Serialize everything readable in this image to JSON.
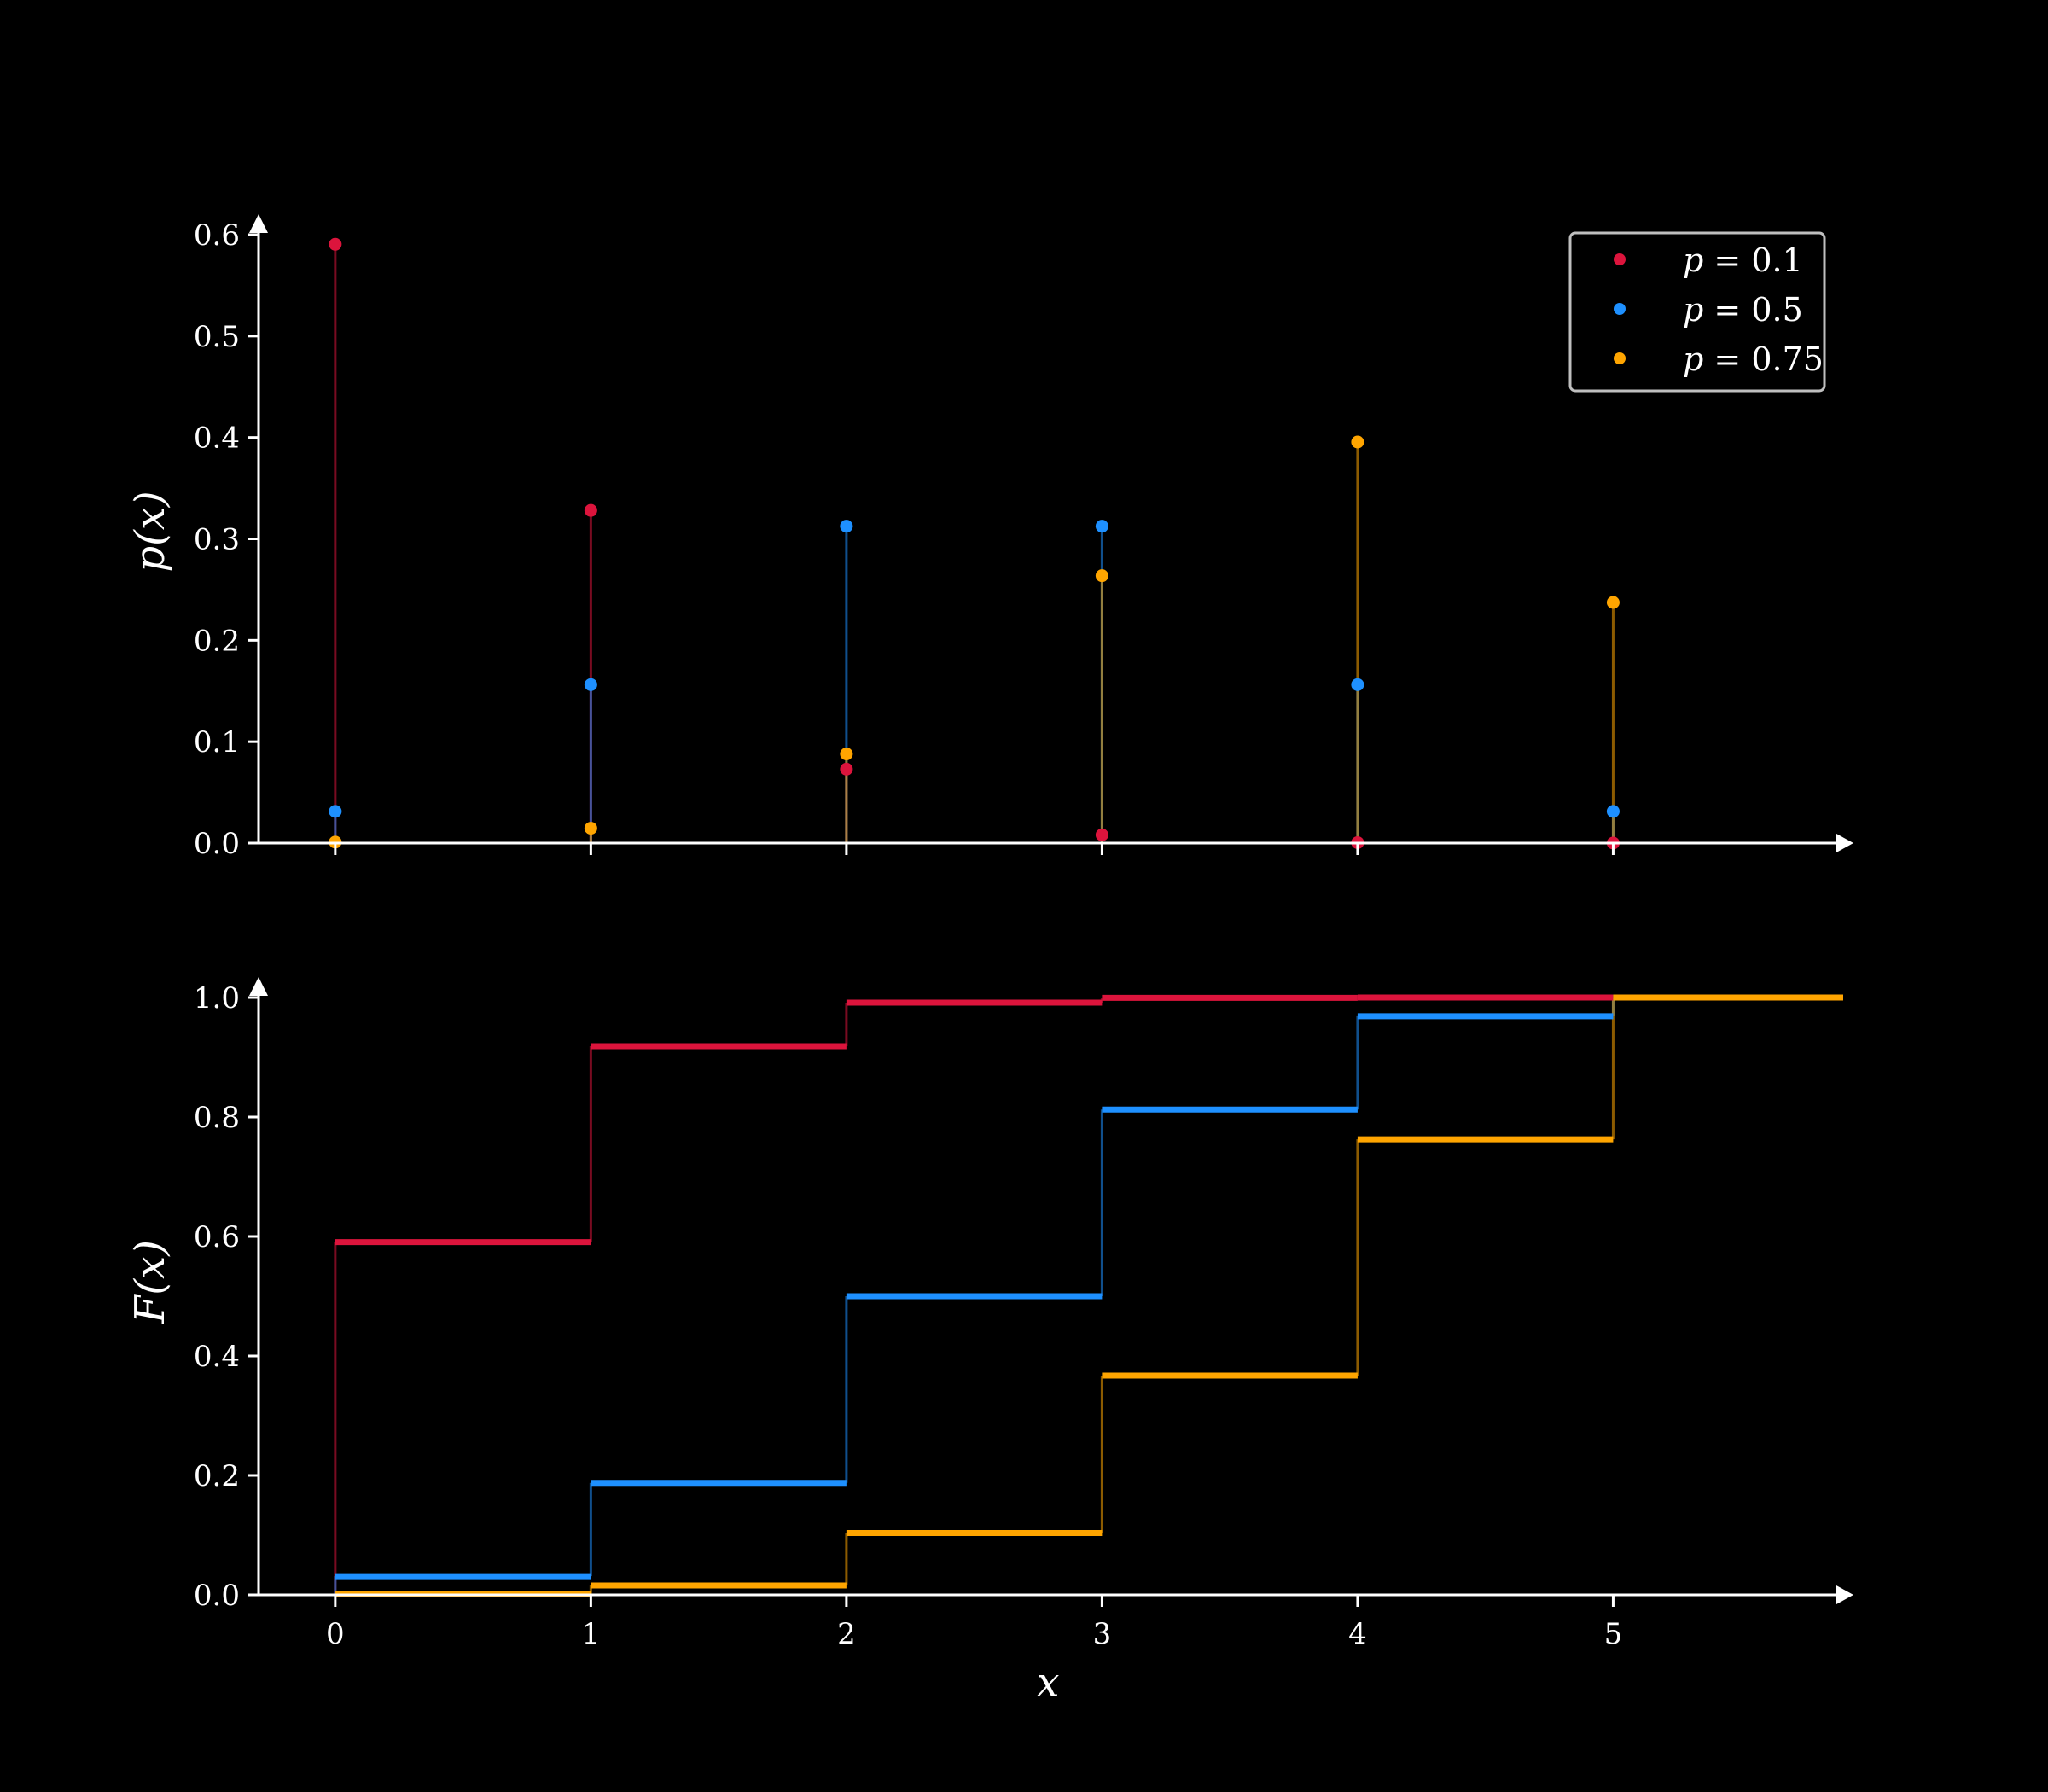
{
  "colors": {
    "background": "#000000",
    "axis": "#ffffff",
    "legend_border": "#bfbfbf",
    "p_0_1": "#dc143c",
    "p_0_5": "#1e90ff",
    "p_0_75": "#ffa500"
  },
  "legend": {
    "placement": "top-right",
    "entries": [
      {
        "var": "p",
        "op": " = ",
        "val": "0.1"
      },
      {
        "var": "p",
        "op": " = ",
        "val": "0.5"
      },
      {
        "var": "p",
        "op": " = ",
        "val": "0.75"
      }
    ]
  },
  "chart_data": [
    {
      "type": "scatter",
      "subtype": "stem",
      "ylabel": "p(x)",
      "xlabel": "",
      "x": [
        0,
        1,
        2,
        3,
        4,
        5
      ],
      "xlim": [
        -0.3,
        5.9
      ],
      "ylim": [
        0,
        0.6
      ],
      "yticks": [
        "0.0",
        "0.1",
        "0.2",
        "0.3",
        "0.4",
        "0.5",
        "0.6"
      ],
      "grid": false,
      "legend": "top-right",
      "series": [
        {
          "name": "p = 0.1",
          "color": "#dc143c",
          "values": [
            0.59049,
            0.32805,
            0.0729,
            0.0081,
            0.00045,
            1e-05
          ]
        },
        {
          "name": "p = 0.5",
          "color": "#1e90ff",
          "values": [
            0.03125,
            0.15625,
            0.3125,
            0.3125,
            0.15625,
            0.03125
          ]
        },
        {
          "name": "p = 0.75",
          "color": "#ffa500",
          "values": [
            0.00098,
            0.01465,
            0.08789,
            0.26367,
            0.39551,
            0.2373
          ]
        }
      ]
    },
    {
      "type": "line",
      "subtype": "step",
      "ylabel": "F(x)",
      "xlabel": "x",
      "x": [
        0,
        1,
        2,
        3,
        4,
        5
      ],
      "xticks": [
        "0",
        "1",
        "2",
        "3",
        "4",
        "5"
      ],
      "xlim": [
        -0.3,
        5.9
      ],
      "ylim": [
        0,
        1.0
      ],
      "yticks": [
        "0.0",
        "0.2",
        "0.4",
        "0.6",
        "0.8",
        "1.0"
      ],
      "grid": false,
      "series": [
        {
          "name": "p = 0.1",
          "color": "#dc143c",
          "values": [
            0.59049,
            0.91854,
            0.99144,
            0.99954,
            0.99999,
            1.0
          ]
        },
        {
          "name": "p = 0.5",
          "color": "#1e90ff",
          "values": [
            0.03125,
            0.1875,
            0.5,
            0.8125,
            0.96875,
            1.0
          ]
        },
        {
          "name": "p = 0.75",
          "color": "#ffa500",
          "values": [
            0.00098,
            0.01563,
            0.10352,
            0.36719,
            0.7627,
            1.0
          ]
        }
      ]
    }
  ]
}
